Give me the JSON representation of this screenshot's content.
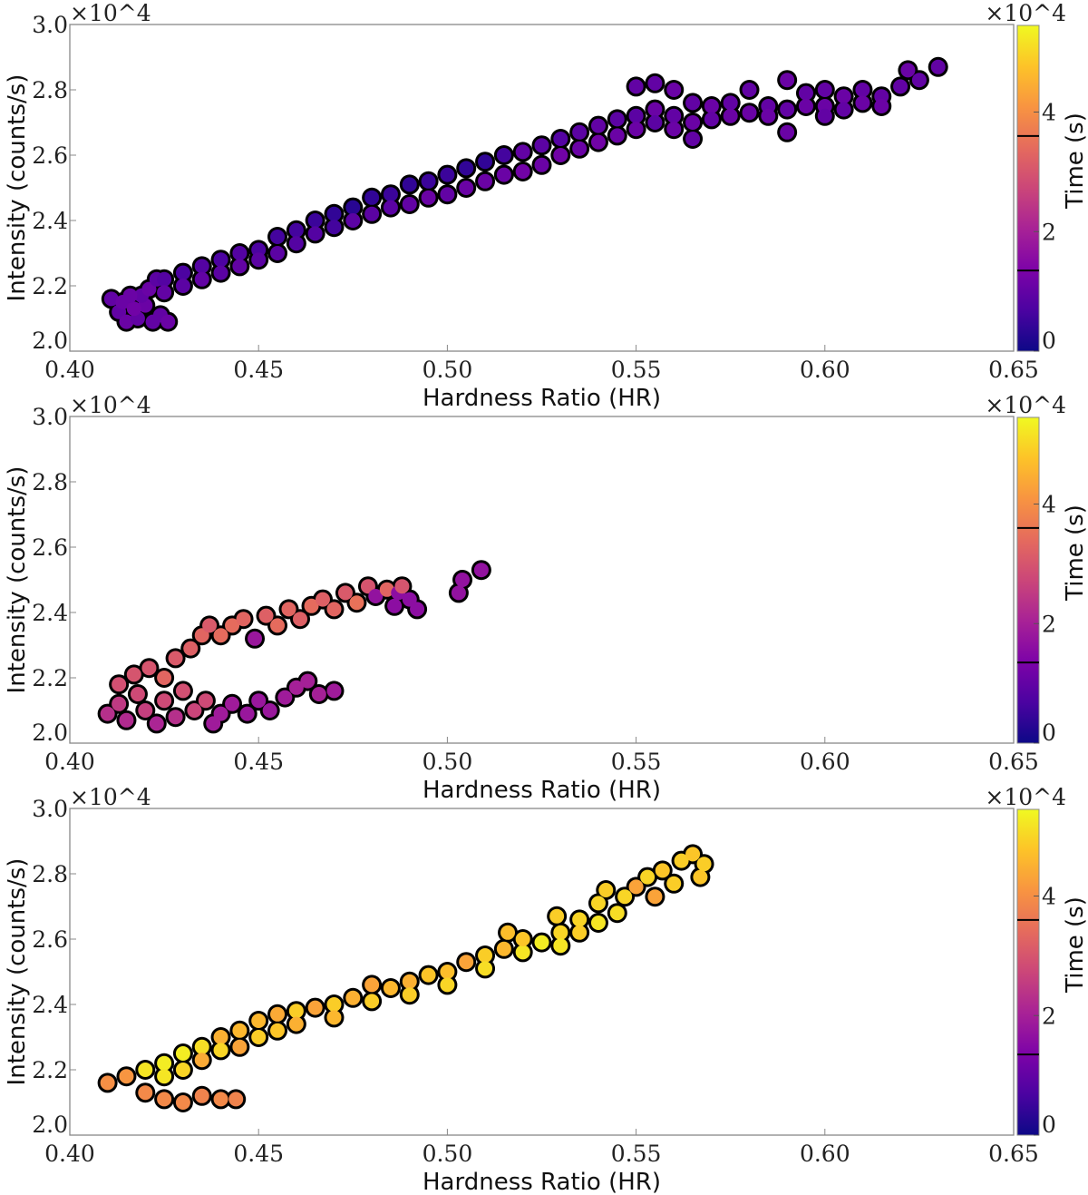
{
  "chart_data": [
    {
      "type": "scatter",
      "xlabel": "Hardness Ratio (HR)",
      "ylabel": "Intensity (counts/s)",
      "y_offset_text": "×10^4",
      "xlim": [
        0.4,
        0.65
      ],
      "ylim": [
        2.0,
        3.0
      ],
      "xticks": [
        "0.40",
        "0.45",
        "0.50",
        "0.55",
        "0.60",
        "0.65"
      ],
      "yticks": [
        "2.0",
        "2.2",
        "2.4",
        "2.6",
        "2.8",
        "3.0"
      ],
      "colorbar": {
        "label": "Time (s)",
        "offset_text": "×10^4",
        "colormap": "plasma",
        "range": [
          0,
          5.45
        ],
        "ticks": [
          "0",
          "2",
          "4"
        ],
        "markers": [
          1.35,
          3.6
        ]
      },
      "point_format": [
        "hardness_ratio",
        "intensity_x1e4",
        "time_x1e4"
      ],
      "points": [
        [
          0.411,
          2.16,
          1.0
        ],
        [
          0.413,
          2.12,
          1.0
        ],
        [
          0.415,
          2.09,
          1.1
        ],
        [
          0.418,
          2.1,
          1.0
        ],
        [
          0.42,
          2.14,
          1.1
        ],
        [
          0.422,
          2.09,
          1.0
        ],
        [
          0.424,
          2.11,
          1.0
        ],
        [
          0.426,
          2.09,
          1.1
        ],
        [
          0.414,
          2.15,
          1.1
        ],
        [
          0.419,
          2.17,
          1.0
        ],
        [
          0.417,
          2.13,
          1.2
        ],
        [
          0.421,
          2.19,
          1.1
        ],
        [
          0.423,
          2.22,
          0.9
        ],
        [
          0.416,
          2.17,
          1.1
        ],
        [
          0.425,
          2.22,
          0.8
        ],
        [
          0.425,
          2.18,
          1.0
        ],
        [
          0.43,
          2.24,
          0.7
        ],
        [
          0.43,
          2.2,
          0.9
        ],
        [
          0.435,
          2.26,
          0.8
        ],
        [
          0.435,
          2.22,
          1.0
        ],
        [
          0.44,
          2.28,
          0.7
        ],
        [
          0.44,
          2.24,
          0.9
        ],
        [
          0.445,
          2.3,
          0.8
        ],
        [
          0.445,
          2.26,
          1.0
        ],
        [
          0.45,
          2.31,
          0.7
        ],
        [
          0.45,
          2.28,
          0.9
        ],
        [
          0.455,
          2.35,
          0.6
        ],
        [
          0.455,
          2.3,
          0.9
        ],
        [
          0.46,
          2.37,
          0.6
        ],
        [
          0.46,
          2.33,
          0.8
        ],
        [
          0.465,
          2.4,
          0.5
        ],
        [
          0.465,
          2.36,
          0.8
        ],
        [
          0.47,
          2.42,
          0.4
        ],
        [
          0.47,
          2.38,
          0.6
        ],
        [
          0.475,
          2.44,
          0.3
        ],
        [
          0.475,
          2.4,
          0.9
        ],
        [
          0.48,
          2.47,
          0.4
        ],
        [
          0.48,
          2.42,
          0.9
        ],
        [
          0.485,
          2.48,
          0.5
        ],
        [
          0.485,
          2.44,
          0.9
        ],
        [
          0.49,
          2.51,
          0.4
        ],
        [
          0.49,
          2.45,
          1.0
        ],
        [
          0.495,
          2.52,
          0.5
        ],
        [
          0.495,
          2.47,
          1.1
        ],
        [
          0.5,
          2.54,
          0.5
        ],
        [
          0.5,
          2.48,
          1.0
        ],
        [
          0.505,
          2.56,
          0.4
        ],
        [
          0.505,
          2.5,
          1.1
        ],
        [
          0.51,
          2.58,
          0.4
        ],
        [
          0.51,
          2.52,
          1.1
        ],
        [
          0.515,
          2.6,
          0.6
        ],
        [
          0.515,
          2.54,
          1.1
        ],
        [
          0.52,
          2.61,
          1.0
        ],
        [
          0.52,
          2.55,
          1.2
        ],
        [
          0.525,
          2.63,
          0.9
        ],
        [
          0.525,
          2.57,
          1.1
        ],
        [
          0.53,
          2.65,
          0.8
        ],
        [
          0.53,
          2.6,
          1.2
        ],
        [
          0.535,
          2.67,
          0.9
        ],
        [
          0.535,
          2.62,
          1.1
        ],
        [
          0.54,
          2.69,
          1.0
        ],
        [
          0.54,
          2.64,
          1.2
        ],
        [
          0.545,
          2.71,
          0.9
        ],
        [
          0.545,
          2.66,
          1.1
        ],
        [
          0.55,
          2.72,
          0.9
        ],
        [
          0.55,
          2.68,
          1.1
        ],
        [
          0.55,
          2.81,
          1.0
        ],
        [
          0.555,
          2.82,
          1.0
        ],
        [
          0.555,
          2.74,
          1.1
        ],
        [
          0.555,
          2.7,
          0.9
        ],
        [
          0.56,
          2.8,
          1.1
        ],
        [
          0.56,
          2.72,
          1.0
        ],
        [
          0.56,
          2.68,
          1.1
        ],
        [
          0.565,
          2.76,
          1.0
        ],
        [
          0.565,
          2.7,
          1.1
        ],
        [
          0.565,
          2.65,
          1.0
        ],
        [
          0.57,
          2.75,
          1.1
        ],
        [
          0.57,
          2.71,
          1.0
        ],
        [
          0.575,
          2.76,
          1.0
        ],
        [
          0.575,
          2.72,
          1.1
        ],
        [
          0.58,
          2.8,
          1.0
        ],
        [
          0.58,
          2.73,
          1.1
        ],
        [
          0.585,
          2.75,
          1.0
        ],
        [
          0.585,
          2.72,
          1.1
        ],
        [
          0.59,
          2.83,
          1.1
        ],
        [
          0.59,
          2.74,
          1.0
        ],
        [
          0.59,
          2.67,
          1.1
        ],
        [
          0.595,
          2.79,
          1.0
        ],
        [
          0.595,
          2.75,
          1.1
        ],
        [
          0.6,
          2.8,
          1.0
        ],
        [
          0.6,
          2.75,
          1.1
        ],
        [
          0.6,
          2.72,
          1.0
        ],
        [
          0.605,
          2.78,
          1.1
        ],
        [
          0.605,
          2.74,
          1.0
        ],
        [
          0.61,
          2.8,
          1.0
        ],
        [
          0.61,
          2.76,
          1.1
        ],
        [
          0.615,
          2.78,
          1.0
        ],
        [
          0.615,
          2.75,
          1.1
        ],
        [
          0.62,
          2.81,
          1.0
        ],
        [
          0.622,
          2.86,
          1.1
        ],
        [
          0.625,
          2.83,
          1.0
        ],
        [
          0.63,
          2.87,
          1.0
        ]
      ]
    },
    {
      "type": "scatter",
      "xlabel": "Hardness Ratio (HR)",
      "ylabel": "Intensity (counts/s)",
      "y_offset_text": "×10^4",
      "xlim": [
        0.4,
        0.65
      ],
      "ylim": [
        2.0,
        3.0
      ],
      "xticks": [
        "0.40",
        "0.45",
        "0.50",
        "0.55",
        "0.60",
        "0.65"
      ],
      "yticks": [
        "2.0",
        "2.2",
        "2.4",
        "2.6",
        "2.8",
        "3.0"
      ],
      "colorbar": {
        "label": "Time (s)",
        "offset_text": "×10^4",
        "colormap": "plasma",
        "range": [
          0,
          5.45
        ],
        "ticks": [
          "0",
          "2",
          "4"
        ],
        "markers": [
          1.35,
          3.6
        ]
      },
      "point_format": [
        "hardness_ratio",
        "intensity_x1e4",
        "time_x1e4"
      ],
      "points": [
        [
          0.41,
          2.09,
          2.3
        ],
        [
          0.413,
          2.12,
          2.5
        ],
        [
          0.415,
          2.07,
          2.2
        ],
        [
          0.418,
          2.15,
          2.8
        ],
        [
          0.42,
          2.1,
          2.6
        ],
        [
          0.423,
          2.06,
          2.1
        ],
        [
          0.425,
          2.13,
          2.8
        ],
        [
          0.428,
          2.08,
          2.3
        ],
        [
          0.43,
          2.16,
          2.9
        ],
        [
          0.433,
          2.1,
          2.7
        ],
        [
          0.436,
          2.13,
          2.8
        ],
        [
          0.438,
          2.06,
          1.9
        ],
        [
          0.44,
          2.09,
          1.9
        ],
        [
          0.443,
          2.12,
          1.9
        ],
        [
          0.447,
          2.09,
          1.8
        ],
        [
          0.45,
          2.13,
          1.8
        ],
        [
          0.453,
          2.1,
          1.8
        ],
        [
          0.457,
          2.14,
          1.9
        ],
        [
          0.46,
          2.17,
          2.0
        ],
        [
          0.463,
          2.19,
          2.0
        ],
        [
          0.466,
          2.15,
          2.0
        ],
        [
          0.47,
          2.16,
          1.9
        ],
        [
          0.413,
          2.18,
          2.9
        ],
        [
          0.417,
          2.21,
          3.0
        ],
        [
          0.421,
          2.23,
          3.0
        ],
        [
          0.425,
          2.2,
          3.3
        ],
        [
          0.428,
          2.26,
          3.1
        ],
        [
          0.432,
          2.29,
          3.2
        ],
        [
          0.435,
          2.33,
          3.3
        ],
        [
          0.437,
          2.36,
          3.1
        ],
        [
          0.44,
          2.33,
          3.4
        ],
        [
          0.443,
          2.36,
          3.4
        ],
        [
          0.446,
          2.38,
          3.3
        ],
        [
          0.449,
          2.32,
          1.8
        ],
        [
          0.452,
          2.39,
          3.2
        ],
        [
          0.455,
          2.36,
          3.4
        ],
        [
          0.458,
          2.41,
          3.3
        ],
        [
          0.461,
          2.38,
          3.2
        ],
        [
          0.464,
          2.42,
          3.4
        ],
        [
          0.467,
          2.44,
          3.2
        ],
        [
          0.47,
          2.41,
          3.3
        ],
        [
          0.473,
          2.46,
          3.1
        ],
        [
          0.476,
          2.43,
          3.5
        ],
        [
          0.479,
          2.48,
          3.0
        ],
        [
          0.481,
          2.45,
          1.7
        ],
        [
          0.484,
          2.47,
          3.3
        ],
        [
          0.487,
          2.46,
          1.6
        ],
        [
          0.49,
          2.44,
          1.6
        ],
        [
          0.492,
          2.41,
          1.6
        ],
        [
          0.486,
          2.42,
          1.6
        ],
        [
          0.488,
          2.48,
          3.0
        ],
        [
          0.503,
          2.46,
          1.7
        ],
        [
          0.504,
          2.5,
          1.7
        ],
        [
          0.509,
          2.53,
          1.7
        ]
      ]
    },
    {
      "type": "scatter",
      "xlabel": "Hardness Ratio (HR)",
      "ylabel": "Intensity (counts/s)",
      "y_offset_text": "×10^4",
      "xlim": [
        0.4,
        0.65
      ],
      "ylim": [
        2.0,
        3.0
      ],
      "xticks": [
        "0.40",
        "0.45",
        "0.50",
        "0.55",
        "0.60",
        "0.65"
      ],
      "yticks": [
        "2.0",
        "2.2",
        "2.4",
        "2.6",
        "2.8",
        "3.0"
      ],
      "colorbar": {
        "label": "Time (s)",
        "offset_text": "×10^4",
        "colormap": "plasma",
        "range": [
          0,
          5.45
        ],
        "ticks": [
          "0",
          "2",
          "4"
        ],
        "markers": [
          1.35,
          3.6
        ]
      },
      "point_format": [
        "hardness_ratio",
        "intensity_x1e4",
        "time_x1e4"
      ],
      "points": [
        [
          0.42,
          2.13,
          3.9
        ],
        [
          0.425,
          2.11,
          3.9
        ],
        [
          0.43,
          2.1,
          3.9
        ],
        [
          0.435,
          2.12,
          3.8
        ],
        [
          0.44,
          2.11,
          3.9
        ],
        [
          0.444,
          2.11,
          3.8
        ],
        [
          0.41,
          2.16,
          4.0
        ],
        [
          0.415,
          2.18,
          4.1
        ],
        [
          0.42,
          2.2,
          5.2
        ],
        [
          0.425,
          2.22,
          5.3
        ],
        [
          0.425,
          2.18,
          5.2
        ],
        [
          0.43,
          2.25,
          5.3
        ],
        [
          0.43,
          2.2,
          5.0
        ],
        [
          0.435,
          2.27,
          5.1
        ],
        [
          0.435,
          2.23,
          4.4
        ],
        [
          0.44,
          2.3,
          4.5
        ],
        [
          0.44,
          2.26,
          5.0
        ],
        [
          0.445,
          2.32,
          4.6
        ],
        [
          0.445,
          2.27,
          4.3
        ],
        [
          0.45,
          2.35,
          4.6
        ],
        [
          0.45,
          2.3,
          4.9
        ],
        [
          0.455,
          2.37,
          4.4
        ],
        [
          0.455,
          2.32,
          4.8
        ],
        [
          0.46,
          2.38,
          4.9
        ],
        [
          0.46,
          2.34,
          4.5
        ],
        [
          0.465,
          2.39,
          4.3
        ],
        [
          0.47,
          2.4,
          4.9
        ],
        [
          0.47,
          2.36,
          4.6
        ],
        [
          0.475,
          2.42,
          4.5
        ],
        [
          0.48,
          2.46,
          4.3
        ],
        [
          0.48,
          2.41,
          4.9
        ],
        [
          0.485,
          2.45,
          4.6
        ],
        [
          0.49,
          2.47,
          4.5
        ],
        [
          0.49,
          2.43,
          4.9
        ],
        [
          0.495,
          2.49,
          4.8
        ],
        [
          0.5,
          2.5,
          4.7
        ],
        [
          0.5,
          2.46,
          5.0
        ],
        [
          0.505,
          2.53,
          4.3
        ],
        [
          0.51,
          2.55,
          4.9
        ],
        [
          0.51,
          2.51,
          5.1
        ],
        [
          0.515,
          2.57,
          4.6
        ],
        [
          0.516,
          2.62,
          4.7
        ],
        [
          0.52,
          2.56,
          5.2
        ],
        [
          0.52,
          2.6,
          4.8
        ],
        [
          0.525,
          2.59,
          5.3
        ],
        [
          0.529,
          2.67,
          4.9
        ],
        [
          0.53,
          2.62,
          5.0
        ],
        [
          0.53,
          2.58,
          5.2
        ],
        [
          0.535,
          2.66,
          5.0
        ],
        [
          0.535,
          2.62,
          4.9
        ],
        [
          0.54,
          2.71,
          5.0
        ],
        [
          0.54,
          2.65,
          5.2
        ],
        [
          0.542,
          2.75,
          4.9
        ],
        [
          0.545,
          2.68,
          5.1
        ],
        [
          0.547,
          2.73,
          5.0
        ],
        [
          0.55,
          2.76,
          4.3
        ],
        [
          0.553,
          2.79,
          5.0
        ],
        [
          0.555,
          2.73,
          4.3
        ],
        [
          0.557,
          2.81,
          4.8
        ],
        [
          0.56,
          2.77,
          4.9
        ],
        [
          0.562,
          2.84,
          4.9
        ],
        [
          0.565,
          2.86,
          4.8
        ],
        [
          0.567,
          2.79,
          4.8
        ],
        [
          0.568,
          2.83,
          4.9
        ]
      ]
    }
  ],
  "colors": {
    "outline": "#000000",
    "plasma": [
      "#0d0887",
      "#4b03a1",
      "#7d03a8",
      "#a82296",
      "#cb4679",
      "#e56b5d",
      "#f89441",
      "#fdc328",
      "#f0f921"
    ]
  }
}
